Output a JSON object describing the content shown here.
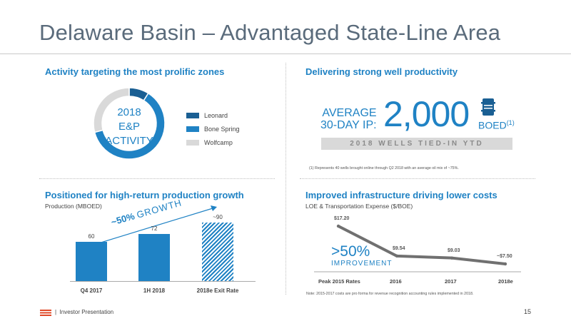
{
  "slide": {
    "title": "Delaware Basin – Advantaged State-Line Area",
    "page_number": "15",
    "footer_sep": "|",
    "footer_text": "Investor Presentation"
  },
  "activity": {
    "heading": "Activity targeting the most prolific zones",
    "donut_line1": "2018",
    "donut_line2": "E&P",
    "donut_line3": "ACTIVITY",
    "legend": [
      {
        "label": "Leonard",
        "color": "#1a5f93"
      },
      {
        "label": "Bone Spring",
        "color": "#1f82c4"
      },
      {
        "label": "Wolfcamp",
        "color": "#d9d9d9"
      }
    ]
  },
  "productivity": {
    "heading": "Delivering strong well productivity",
    "avg_line1": "AVERAGE",
    "avg_line2": "30-DAY IP:",
    "value": "2,000",
    "unit": "BOED",
    "unit_sup": "(1)",
    "banner": "2018 WELLS TIED-IN YTD",
    "footnote": "(1) Represents 40 wells brought online through Q2 2018 with an average oil mix of ~75%."
  },
  "growth": {
    "heading": "Positioned for high-return production growth",
    "subheading": "Production (MBOED)",
    "callout_pct": "~50%",
    "callout_word": "GROWTH"
  },
  "costs": {
    "heading": "Improved infrastructure driving lower costs",
    "subheading": "LOE & Transportation Expense ($/BOE)",
    "callout_big": ">50%",
    "callout_small": "IMPROVEMENT",
    "note": "Note: 2015-2017 costs are pro forma for revenue recognition accounting rules implemented in 2018."
  },
  "chart_data": [
    {
      "type": "bar",
      "categories": [
        "Q4 2017",
        "1H 2018",
        "2018e Exit Rate"
      ],
      "values": [
        60,
        72,
        90
      ],
      "value_labels": [
        "60",
        "72",
        "~90"
      ],
      "ylabel": "Production (MBOED)",
      "grid": false
    },
    {
      "type": "line",
      "categories": [
        "Peak 2015 Rates",
        "2016",
        "2017",
        "2018e"
      ],
      "values": [
        17.2,
        9.54,
        9.03,
        7.5
      ],
      "value_labels": [
        "$17.20",
        "$9.54",
        "$9.03",
        "~$7.50"
      ],
      "ylabel": "LOE & Transportation Expense ($/BOE)",
      "line_color": "#707070",
      "grid": false
    }
  ]
}
